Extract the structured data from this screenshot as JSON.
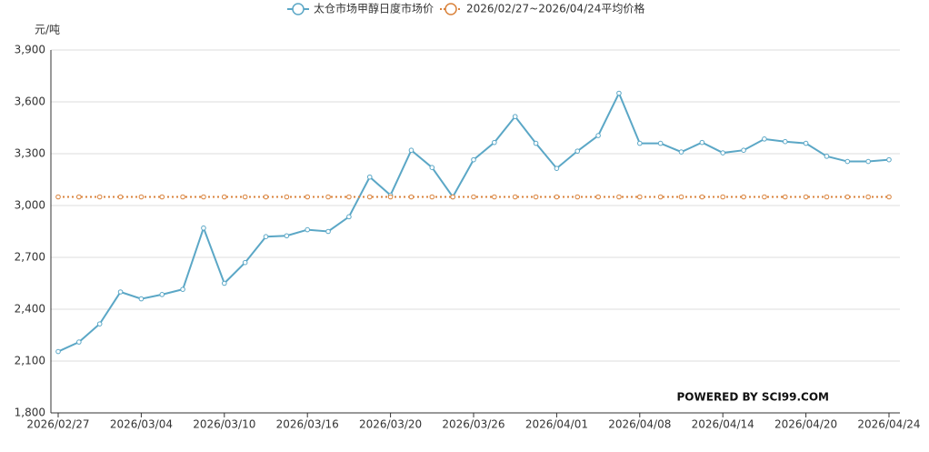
{
  "chart_data": {
    "type": "line",
    "y_unit": "元/吨",
    "watermark": "POWERED BY SCI99.COM",
    "categories": [
      "2026/02/27",
      null,
      null,
      null,
      "2026/03/04",
      null,
      null,
      null,
      "2026/03/10",
      null,
      null,
      null,
      "2026/03/16",
      null,
      null,
      null,
      "2026/03/20",
      null,
      null,
      null,
      "2026/03/26",
      null,
      null,
      null,
      "2026/04/01",
      null,
      null,
      null,
      "2026/04/08",
      null,
      null,
      null,
      "2026/04/14",
      null,
      null,
      null,
      "2026/04/20",
      null,
      null,
      null,
      "2026/04/24"
    ],
    "series": [
      {
        "name": "太仓市场甲醇日度市场价",
        "color": "#5ba7c6",
        "style": "solid",
        "values": [
          2155,
          2210,
          2315,
          2500,
          2460,
          2485,
          2515,
          2870,
          2550,
          2670,
          2820,
          2825,
          2860,
          2850,
          2935,
          3165,
          3060,
          3320,
          3220,
          3050,
          3265,
          3365,
          3515,
          3360,
          3215,
          3315,
          3405,
          3650,
          3360,
          3360,
          3310,
          3365,
          3305,
          3320,
          3385,
          3370,
          3360,
          3285,
          3255,
          3255,
          3265
        ]
      },
      {
        "name": "2026/02/27~2026/04/24平均价格",
        "color": "#d9823b",
        "style": "dotted",
        "values": [
          3050,
          3050,
          3050,
          3050,
          3050,
          3050,
          3050,
          3050,
          3050,
          3050,
          3050,
          3050,
          3050,
          3050,
          3050,
          3050,
          3050,
          3050,
          3050,
          3050,
          3050,
          3050,
          3050,
          3050,
          3050,
          3050,
          3050,
          3050,
          3050,
          3050,
          3050,
          3050,
          3050,
          3050,
          3050,
          3050,
          3050,
          3050,
          3050,
          3050,
          3050
        ]
      }
    ],
    "ylim": [
      1800,
      3900
    ],
    "yticks": [
      {
        "value": 1800,
        "label": "1,800"
      },
      {
        "value": 2100,
        "label": "2,100"
      },
      {
        "value": 2400,
        "label": "2,400"
      },
      {
        "value": 2700,
        "label": "2,700"
      },
      {
        "value": 3000,
        "label": "3,000"
      },
      {
        "value": 3300,
        "label": "3,300"
      },
      {
        "value": 3600,
        "label": "3,600"
      },
      {
        "value": 3900,
        "label": "3,900"
      }
    ],
    "grid": true
  }
}
